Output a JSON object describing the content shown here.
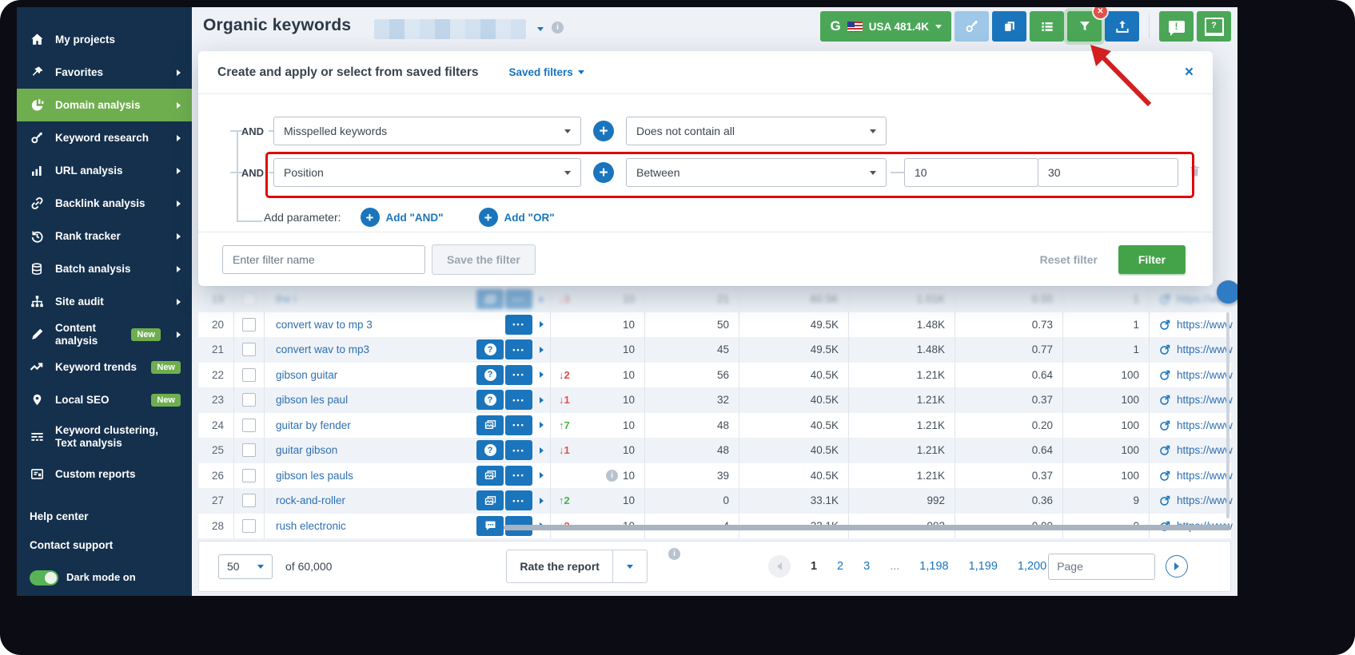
{
  "sidebar": {
    "items": [
      {
        "label": "My projects",
        "icon": "home"
      },
      {
        "label": "Favorites",
        "icon": "pin",
        "arrow": true
      },
      {
        "label": "Domain analysis",
        "icon": "domain",
        "arrow": true,
        "active": true
      },
      {
        "label": "Keyword research",
        "icon": "key",
        "arrow": true
      },
      {
        "label": "URL analysis",
        "icon": "bars",
        "arrow": true
      },
      {
        "label": "Backlink analysis",
        "icon": "link",
        "arrow": true
      },
      {
        "label": "Rank tracker",
        "icon": "history",
        "arrow": true
      },
      {
        "label": "Batch analysis",
        "icon": "stack",
        "arrow": true
      },
      {
        "label": "Site audit",
        "icon": "sitemap",
        "arrow": true
      },
      {
        "label": "Content analysis",
        "icon": "pencil",
        "badge": "New",
        "arrow": true
      },
      {
        "label": "Keyword trends",
        "icon": "trend",
        "badge": "New"
      },
      {
        "label": "Local SEO",
        "icon": "mappin",
        "badge": "New"
      },
      {
        "label": "Keyword clustering, Text analysis",
        "icon": "cluster",
        "tall": true
      },
      {
        "label": "Custom reports",
        "icon": "report"
      }
    ],
    "help_label": "Help center",
    "contact_label": "Contact support",
    "dark_mode_label": "Dark mode on"
  },
  "header": {
    "title": "Organic keywords",
    "google_letter": "G",
    "search_engine_label": "USA 481.4K"
  },
  "filter_panel": {
    "title": "Create and apply or select from saved filters",
    "saved_filters_label": "Saved filters",
    "conditions": [
      {
        "logic": "AND",
        "field": "Misspelled keywords",
        "operator": "Does not contain all"
      },
      {
        "logic": "AND",
        "field": "Position",
        "operator": "Between",
        "value_from": "10",
        "value_to": "30",
        "highlighted": true
      }
    ],
    "add_parameter_label": "Add parameter:",
    "add_and_label": "Add \"AND\"",
    "add_or_label": "Add \"OR\"",
    "filter_name_placeholder": "Enter filter name",
    "save_button_label": "Save the filter",
    "reset_button_label": "Reset filter",
    "apply_button_label": "Filter",
    "close_glyph": "×"
  },
  "table": {
    "rows": [
      {
        "num": "19",
        "keyword": "the i",
        "badges": [
          "image",
          "more"
        ],
        "change": "3",
        "dir": "down",
        "pos": "10",
        "traffic": "21",
        "volume": "60.5K",
        "cpc": "1.01K",
        "comp": "0.55",
        "results": "1",
        "url": "https://www.swe",
        "faded": true
      },
      {
        "num": "20",
        "keyword": "convert wav to mp 3",
        "badges": [
          "more"
        ],
        "change": "",
        "dir": "",
        "pos": "10",
        "traffic": "50",
        "volume": "49.5K",
        "cpc": "1.48K",
        "comp": "0.73",
        "results": "1",
        "url": "https://www"
      },
      {
        "num": "21",
        "keyword": "convert wav to mp3",
        "badges": [
          "question",
          "more"
        ],
        "change": "",
        "dir": "",
        "pos": "10",
        "traffic": "45",
        "volume": "49.5K",
        "cpc": "1.48K",
        "comp": "0.77",
        "results": "1",
        "url": "https://www"
      },
      {
        "num": "22",
        "keyword": "gibson guitar",
        "badges": [
          "question",
          "more"
        ],
        "change": "2",
        "dir": "down",
        "pos": "10",
        "traffic": "56",
        "volume": "40.5K",
        "cpc": "1.21K",
        "comp": "0.64",
        "results": "100",
        "url": "https://www"
      },
      {
        "num": "23",
        "keyword": "gibson les paul",
        "badges": [
          "question",
          "more"
        ],
        "change": "1",
        "dir": "down",
        "pos": "10",
        "traffic": "32",
        "volume": "40.5K",
        "cpc": "1.21K",
        "comp": "0.37",
        "results": "100",
        "url": "https://www"
      },
      {
        "num": "24",
        "keyword": "guitar by fender",
        "badges": [
          "image",
          "more"
        ],
        "change": "7",
        "dir": "up",
        "pos": "10",
        "traffic": "48",
        "volume": "40.5K",
        "cpc": "1.21K",
        "comp": "0.20",
        "results": "100",
        "url": "https://www"
      },
      {
        "num": "25",
        "keyword": "guitar gibson",
        "badges": [
          "question",
          "more"
        ],
        "change": "1",
        "dir": "down",
        "pos": "10",
        "traffic": "48",
        "volume": "40.5K",
        "cpc": "1.21K",
        "comp": "0.64",
        "results": "100",
        "url": "https://www"
      },
      {
        "num": "26",
        "keyword": "gibson les pauls",
        "badges": [
          "image",
          "more"
        ],
        "change": "",
        "dir": "",
        "info": true,
        "pos": "10",
        "traffic": "39",
        "volume": "40.5K",
        "cpc": "1.21K",
        "comp": "0.37",
        "results": "100",
        "url": "https://www"
      },
      {
        "num": "27",
        "keyword": "rock-and-roller",
        "badges": [
          "image",
          "more"
        ],
        "change": "2",
        "dir": "up",
        "pos": "10",
        "traffic": "0",
        "volume": "33.1K",
        "cpc": "992",
        "comp": "0.36",
        "results": "9",
        "url": "https://www"
      },
      {
        "num": "28",
        "keyword": "rush electronic",
        "badges": [
          "comment",
          "more"
        ],
        "change": "2",
        "dir": "down",
        "pos": "10",
        "traffic": "4",
        "volume": "33.1K",
        "cpc": "992",
        "comp": "0.00",
        "results": "0",
        "url": "https://www"
      }
    ]
  },
  "footer": {
    "page_size": "50",
    "total_label": "of 60,000",
    "rate_label": "Rate the report",
    "pagination": {
      "pages": [
        "1",
        "2",
        "3",
        "...",
        "1,198",
        "1,199",
        "1,200"
      ],
      "current": "1",
      "page_input_placeholder": "Page"
    }
  },
  "colors": {
    "sidebar_navy": "#14304d",
    "active_green": "#6fae4e",
    "accent_green": "#4ba757",
    "primary_blue": "#1a75bc",
    "link_blue": "#2e6fb2",
    "alert_red": "#e10600"
  }
}
